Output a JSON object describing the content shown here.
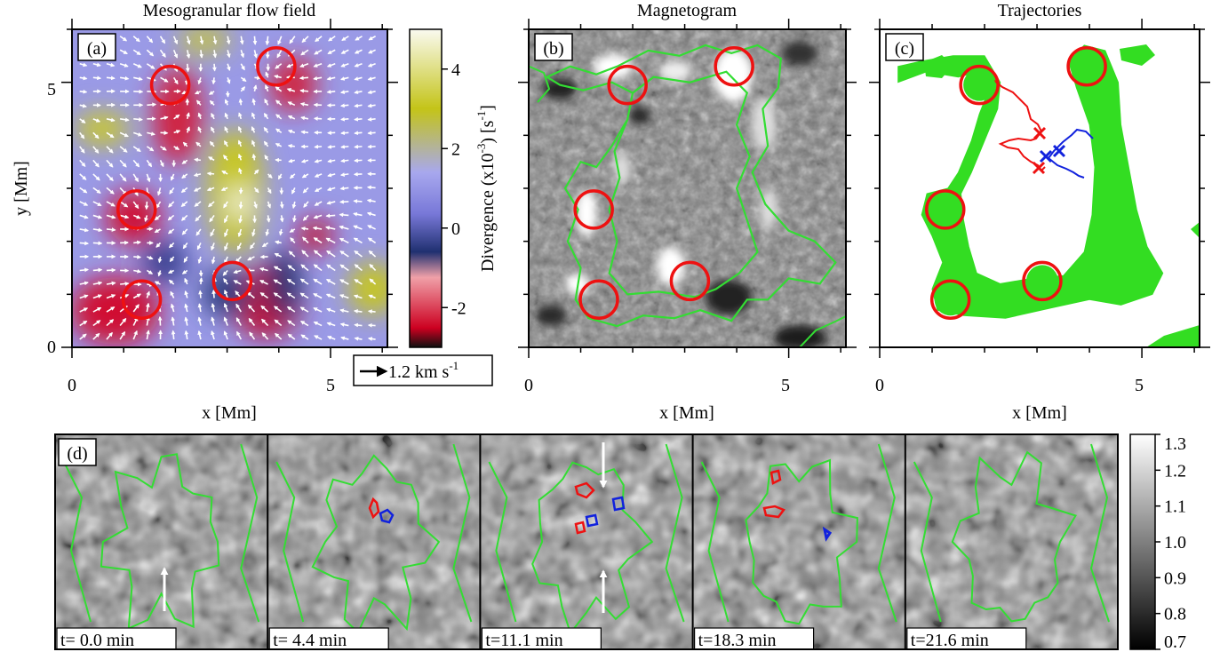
{
  "panels": {
    "a": {
      "tag": "(a)",
      "title": "Mesogranular flow field"
    },
    "b": {
      "tag": "(b)",
      "title": "Magnetogram"
    },
    "c": {
      "tag": "(c)",
      "title": "Trajectories"
    },
    "d": {
      "tag": "(d)"
    }
  },
  "axes": {
    "xlabel": "x [Mm]",
    "ylabel": "y [Mm]",
    "x_ticks": [
      "0",
      "5"
    ],
    "y_ticks": [
      "0",
      "5"
    ],
    "x_range": [
      0,
      6.1
    ],
    "y_range": [
      0,
      6.0
    ]
  },
  "divergence_colorbar": {
    "label_main": "Divergence (x10",
    "label_exp": "-3",
    "label_mid": ") [s",
    "label_exp2": "-1",
    "label_end": "]",
    "ticks": [
      "4",
      "2",
      "0",
      "-2"
    ],
    "range": [
      -3,
      5
    ],
    "colors": [
      "#1a1a1a",
      "#dd0022",
      "#f09090",
      "#2a3070",
      "#8080e0",
      "#a6a6ee",
      "#c8c810",
      "#f8f8f0"
    ]
  },
  "velocity_key": {
    "label": "1.2  km s",
    "exp": "-1"
  },
  "intensity_colorbar": {
    "ticks": [
      "1.3",
      "1.2",
      "1.1",
      "1.0",
      "0.9",
      "0.8",
      "0.7"
    ],
    "range": [
      0.7,
      1.3
    ]
  },
  "circles_mm": [
    [
      1.9,
      4.95
    ],
    [
      3.95,
      5.3
    ],
    [
      1.25,
      2.6
    ],
    [
      3.1,
      1.25
    ],
    [
      1.35,
      0.9
    ]
  ],
  "time_panels": [
    {
      "label": "t= 0.0 min"
    },
    {
      "label": "t= 4.4 min"
    },
    {
      "label": "t=11.1 min"
    },
    {
      "label": "t=18.3 min"
    },
    {
      "label": "t=21.6 min"
    }
  ],
  "colors": {
    "contour": "#33dd33",
    "circle": "#ee1111",
    "red_track": "#ee1111",
    "blue_track": "#1122dd",
    "mask": "#33dd22"
  }
}
